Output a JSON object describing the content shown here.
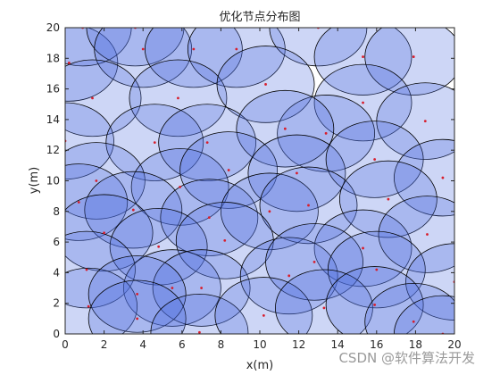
{
  "chart_data": {
    "type": "scatter",
    "title": "优化节点分布图",
    "xlabel": "x(m)",
    "ylabel": "y(m)",
    "xlim": [
      0,
      20
    ],
    "ylim": [
      0,
      20
    ],
    "x_ticks": [
      "0",
      "2",
      "4",
      "6",
      "8",
      "10",
      "12",
      "14",
      "16",
      "18",
      "20"
    ],
    "y_ticks": [
      "0",
      "2",
      "4",
      "6",
      "8",
      "10",
      "12",
      "14",
      "16",
      "18",
      "20"
    ],
    "grid": false,
    "sensing_radius": 2.5,
    "colors": {
      "circle_fill": "#4a6ce0",
      "circle_edge": "#000000",
      "node": "#d81e2c",
      "plot_bg": "#ffffff"
    },
    "nodes": [
      [
        0.2,
        17.7
      ],
      [
        0.9,
        20.0
      ],
      [
        3.6,
        20.0
      ],
      [
        4.0,
        18.6
      ],
      [
        6.6,
        18.6
      ],
      [
        8.8,
        18.6
      ],
      [
        13.0,
        20.0
      ],
      [
        15.3,
        18.1
      ],
      [
        17.9,
        18.1
      ],
      [
        1.4,
        15.4
      ],
      [
        5.8,
        15.4
      ],
      [
        10.3,
        16.3
      ],
      [
        15.3,
        15.1
      ],
      [
        18.5,
        13.9
      ],
      [
        13.4,
        13.1
      ],
      [
        0.0,
        12.6
      ],
      [
        4.6,
        12.5
      ],
      [
        7.3,
        12.5
      ],
      [
        11.3,
        13.4
      ],
      [
        1.6,
        10.0
      ],
      [
        5.9,
        9.6
      ],
      [
        8.4,
        10.7
      ],
      [
        11.9,
        10.5
      ],
      [
        15.9,
        11.4
      ],
      [
        19.4,
        10.2
      ],
      [
        0.7,
        8.6
      ],
      [
        3.5,
        8.1
      ],
      [
        7.4,
        7.6
      ],
      [
        10.5,
        8.0
      ],
      [
        12.5,
        8.4
      ],
      [
        16.6,
        8.8
      ],
      [
        2.0,
        6.6
      ],
      [
        4.8,
        5.7
      ],
      [
        8.2,
        6.1
      ],
      [
        15.3,
        5.6
      ],
      [
        18.6,
        6.5
      ],
      [
        1.1,
        4.2
      ],
      [
        5.5,
        3.0
      ],
      [
        7.0,
        3.0
      ],
      [
        11.5,
        3.8
      ],
      [
        12.8,
        4.7
      ],
      [
        16.0,
        4.2
      ],
      [
        20.0,
        3.4
      ],
      [
        1.2,
        1.8
      ],
      [
        3.7,
        2.6
      ],
      [
        3.7,
        1.0
      ],
      [
        6.9,
        0.1
      ],
      [
        10.2,
        1.2
      ],
      [
        13.3,
        1.7
      ],
      [
        15.9,
        1.9
      ],
      [
        17.9,
        0.8
      ],
      [
        19.4,
        0.0
      ]
    ]
  },
  "watermark": "CSDN @软件算法开发"
}
